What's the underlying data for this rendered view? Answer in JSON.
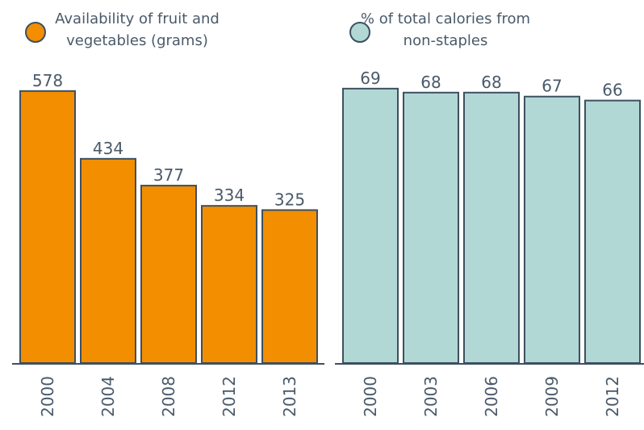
{
  "chart_data": [
    {
      "type": "bar",
      "categories": [
        "2000",
        "2004",
        "2008",
        "2012",
        "2013"
      ],
      "series": [
        {
          "name": "Availability of fruit and vegetables (grams)",
          "color": "#f28e00",
          "values": [
            578,
            434,
            377,
            334,
            325
          ]
        }
      ],
      "ylim": [
        0,
        600
      ]
    },
    {
      "type": "bar",
      "categories": [
        "2000",
        "2003",
        "2006",
        "2009",
        "2012"
      ],
      "series": [
        {
          "name": "% of total calories from non-staples",
          "color": "#b2d8d6",
          "values": [
            69,
            68,
            68,
            67,
            66
          ]
        }
      ],
      "ylim": [
        0,
        71
      ]
    }
  ]
}
